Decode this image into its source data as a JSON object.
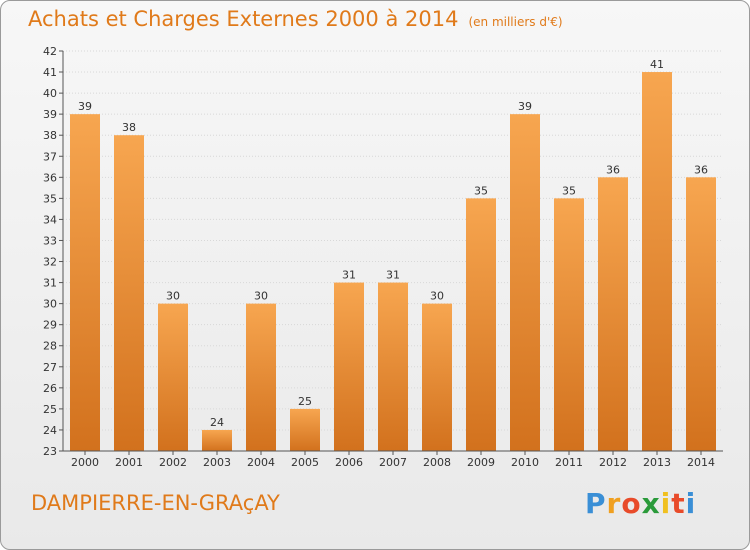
{
  "header": {
    "title": "Achats et Charges Externes 2000 à 2014",
    "subtitle": "(en milliers d'€)"
  },
  "footer": {
    "commune": "DAMPIERRE-EN-GRAçAY",
    "logo": {
      "letters": [
        "P",
        "r",
        "o",
        "x",
        "i",
        "t",
        "i"
      ],
      "colors": [
        "#3a8fd6",
        "#f0a020",
        "#e84b2a",
        "#2a9a3a",
        "#f0c020",
        "#e84b2a",
        "#3a8fd6"
      ]
    }
  },
  "colors": {
    "bar_light": "#f7a650",
    "bar_dark": "#d2711d",
    "title": "#e07a1a"
  },
  "chart_data": {
    "type": "bar",
    "title": "Achats et Charges Externes 2000 à 2014",
    "subtitle": "(en milliers d'€)",
    "categories": [
      "2000",
      "2001",
      "2002",
      "2003",
      "2004",
      "2005",
      "2006",
      "2007",
      "2008",
      "2009",
      "2010",
      "2011",
      "2012",
      "2013",
      "2014"
    ],
    "values": [
      39,
      38,
      30,
      24,
      30,
      25,
      31,
      31,
      30,
      35,
      39,
      35,
      36,
      41,
      36
    ],
    "ylim": [
      23,
      42
    ],
    "yticks": [
      23,
      24,
      25,
      26,
      27,
      28,
      29,
      30,
      31,
      32,
      33,
      34,
      35,
      36,
      37,
      38,
      39,
      40,
      41,
      42
    ],
    "xlabel": "",
    "ylabel": "",
    "grid": true,
    "legend": "none"
  }
}
